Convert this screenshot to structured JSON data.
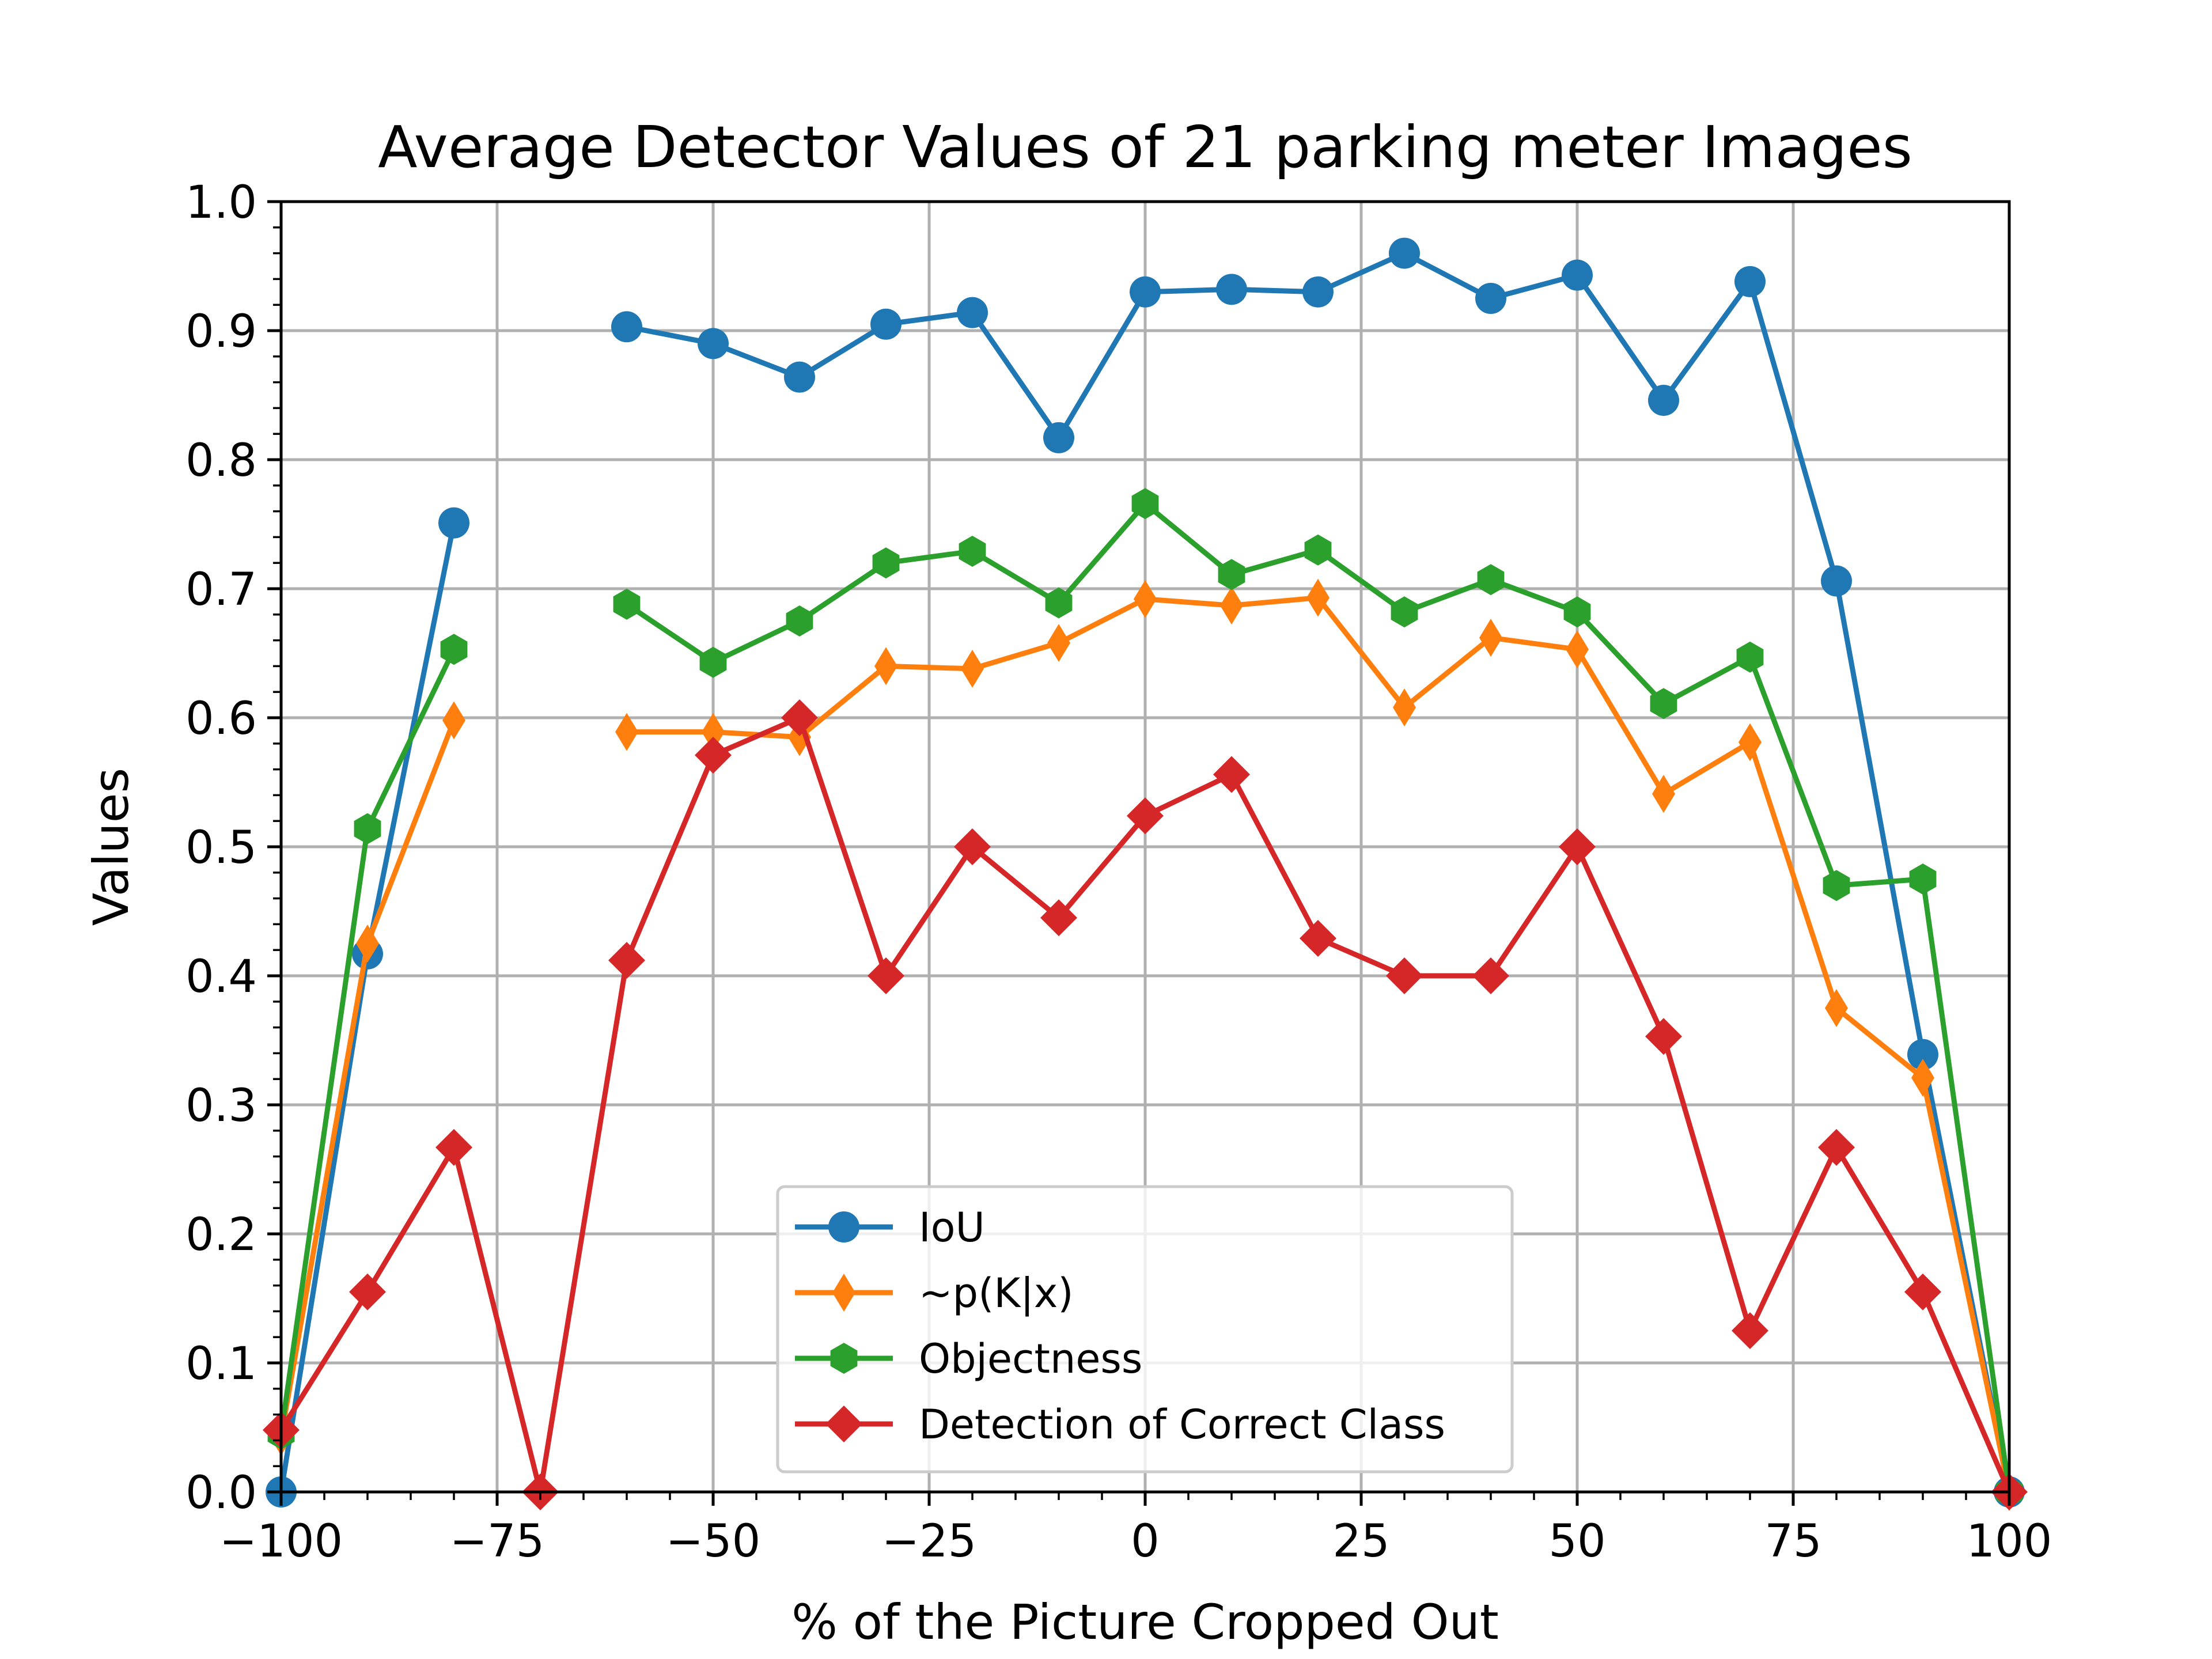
{
  "chart_data": {
    "type": "line",
    "title": "Average Detector Values of 21 parking meter Images",
    "xlabel": "% of the Picture Cropped Out",
    "ylabel": "Values",
    "xlim": [
      -100,
      100
    ],
    "ylim": [
      0,
      1
    ],
    "grid": true,
    "legend_position": "lower-center",
    "x_ticks": [
      -100,
      -75,
      -50,
      -25,
      0,
      25,
      50,
      75,
      100
    ],
    "x_tick_labels": [
      "−100",
      "−75",
      "−50",
      "−25",
      "0",
      "25",
      "50",
      "75",
      "100"
    ],
    "y_ticks": [
      0,
      0.1,
      0.2,
      0.3,
      0.4,
      0.5,
      0.6,
      0.7,
      0.8,
      0.9,
      1.0
    ],
    "y_tick_labels": [
      "0.0",
      "0.1",
      "0.2",
      "0.3",
      "0.4",
      "0.5",
      "0.6",
      "0.7",
      "0.8",
      "0.9",
      "1.0"
    ],
    "series": [
      {
        "name": "IoU",
        "color": "#1f77b4",
        "marker": "circle",
        "points": [
          [
            -100,
            0.0
          ],
          [
            -90,
            0.417
          ],
          [
            -80,
            0.751
          ],
          [
            -60,
            0.903
          ],
          [
            -50,
            0.89
          ],
          [
            -40,
            0.864
          ],
          [
            -30,
            0.905
          ],
          [
            -20,
            0.914
          ],
          [
            -10,
            0.817
          ],
          [
            0,
            0.93
          ],
          [
            10,
            0.932
          ],
          [
            20,
            0.93
          ],
          [
            30,
            0.96
          ],
          [
            40,
            0.925
          ],
          [
            50,
            0.943
          ],
          [
            60,
            0.846
          ],
          [
            70,
            0.938
          ],
          [
            80,
            0.706
          ],
          [
            90,
            0.339
          ],
          [
            100,
            0.0
          ]
        ]
      },
      {
        "name": "~p(K|x)",
        "color": "#ff7f0e",
        "marker": "thin-diamond",
        "points": [
          [
            -100,
            0.043
          ],
          [
            -90,
            0.425
          ],
          [
            -80,
            0.598
          ],
          [
            -60,
            0.589
          ],
          [
            -50,
            0.589
          ],
          [
            -40,
            0.585
          ],
          [
            -30,
            0.64
          ],
          [
            -20,
            0.638
          ],
          [
            -10,
            0.658
          ],
          [
            0,
            0.692
          ],
          [
            10,
            0.687
          ],
          [
            20,
            0.693
          ],
          [
            30,
            0.608
          ],
          [
            40,
            0.662
          ],
          [
            50,
            0.653
          ],
          [
            60,
            0.541
          ],
          [
            70,
            0.581
          ],
          [
            80,
            0.375
          ],
          [
            90,
            0.321
          ],
          [
            100,
            0.0
          ]
        ]
      },
      {
        "name": "Objectness",
        "color": "#2ca02c",
        "marker": "hexagon",
        "points": [
          [
            -100,
            0.045
          ],
          [
            -90,
            0.514
          ],
          [
            -80,
            0.653
          ],
          [
            -60,
            0.688
          ],
          [
            -50,
            0.643
          ],
          [
            -40,
            0.675
          ],
          [
            -30,
            0.72
          ],
          [
            -20,
            0.729
          ],
          [
            -10,
            0.689
          ],
          [
            0,
            0.766
          ],
          [
            10,
            0.711
          ],
          [
            20,
            0.73
          ],
          [
            30,
            0.682
          ],
          [
            40,
            0.707
          ],
          [
            50,
            0.682
          ],
          [
            60,
            0.611
          ],
          [
            70,
            0.647
          ],
          [
            80,
            0.47
          ],
          [
            90,
            0.475
          ],
          [
            100,
            0.0
          ]
        ]
      },
      {
        "name": "Detection of Correct Class",
        "color": "#d62728",
        "marker": "diamond",
        "points": [
          [
            -100,
            0.048
          ],
          [
            -90,
            0.155
          ],
          [
            -80,
            0.267
          ],
          [
            -70,
            0.0
          ],
          [
            -60,
            0.412
          ],
          [
            -50,
            0.571
          ],
          [
            -40,
            0.6
          ],
          [
            -30,
            0.4
          ],
          [
            -20,
            0.5
          ],
          [
            -10,
            0.445
          ],
          [
            0,
            0.524
          ],
          [
            10,
            0.556
          ],
          [
            20,
            0.429
          ],
          [
            30,
            0.4
          ],
          [
            40,
            0.4
          ],
          [
            50,
            0.5
          ],
          [
            60,
            0.353
          ],
          [
            70,
            0.125
          ],
          [
            80,
            0.267
          ],
          [
            90,
            0.155
          ],
          [
            100,
            0.0
          ]
        ]
      }
    ]
  }
}
